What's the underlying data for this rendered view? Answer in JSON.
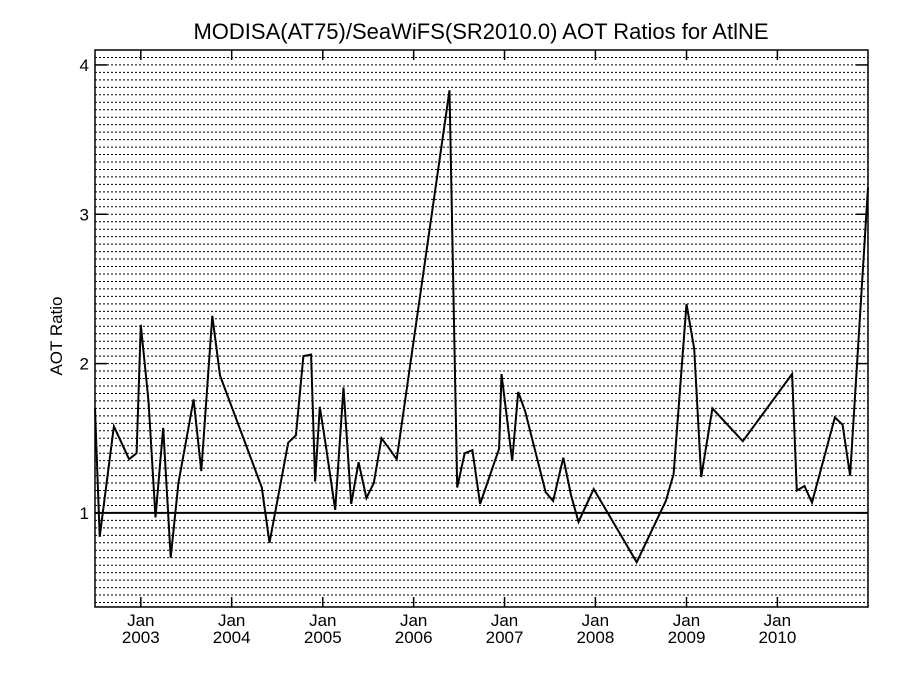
{
  "chart_data": {
    "type": "line",
    "title": "MODISA(AT75)/SeaWiFS(SR2010.0)  AOT Ratios for AtlNE",
    "ylabel": "AOT Ratio",
    "xlabel": "",
    "xlim": [
      "2002-07-01",
      "2010-12-31"
    ],
    "ylim": [
      0.37,
      4.1
    ],
    "y_ticks": [
      1,
      2,
      3,
      4
    ],
    "x_ticks": [
      {
        "month": "Jan",
        "year": "2003",
        "date": "2003-01-01"
      },
      {
        "month": "Jan",
        "year": "2004",
        "date": "2004-01-01"
      },
      {
        "month": "Jan",
        "year": "2005",
        "date": "2005-01-01"
      },
      {
        "month": "Jan",
        "year": "2006",
        "date": "2006-01-01"
      },
      {
        "month": "Jan",
        "year": "2007",
        "date": "2007-01-01"
      },
      {
        "month": "Jan",
        "year": "2008",
        "date": "2008-01-01"
      },
      {
        "month": "Jan",
        "year": "2009",
        "date": "2009-01-01"
      },
      {
        "month": "Jan",
        "year": "2010",
        "date": "2010-01-01"
      }
    ],
    "reference_line": 1,
    "grid": "dotted horizontal",
    "series": [
      {
        "color": "#000000",
        "points": [
          [
            "2002-07-01",
            1.7
          ],
          [
            "2002-07-20",
            0.84
          ],
          [
            "2002-09-15",
            1.58
          ],
          [
            "2002-11-15",
            1.36
          ],
          [
            "2002-12-15",
            1.4
          ],
          [
            "2003-01-01",
            2.26
          ],
          [
            "2003-02-01",
            1.75
          ],
          [
            "2003-03-01",
            0.97
          ],
          [
            "2003-04-01",
            1.57
          ],
          [
            "2003-05-01",
            0.7
          ],
          [
            "2003-06-01",
            1.2
          ],
          [
            "2003-08-01",
            1.76
          ],
          [
            "2003-09-01",
            1.28
          ],
          [
            "2003-10-15",
            2.32
          ],
          [
            "2003-11-15",
            1.92
          ],
          [
            "2004-05-01",
            1.17
          ],
          [
            "2004-06-01",
            0.8
          ],
          [
            "2004-08-15",
            1.47
          ],
          [
            "2004-09-15",
            1.52
          ],
          [
            "2004-10-15",
            2.05
          ],
          [
            "2004-11-15",
            2.06
          ],
          [
            "2004-12-01",
            1.21
          ],
          [
            "2004-12-20",
            1.71
          ],
          [
            "2005-01-15",
            1.43
          ],
          [
            "2005-02-20",
            1.02
          ],
          [
            "2005-03-25",
            1.84
          ],
          [
            "2005-04-25",
            1.06
          ],
          [
            "2005-05-25",
            1.34
          ],
          [
            "2005-06-25",
            1.1
          ],
          [
            "2005-07-25",
            1.2
          ],
          [
            "2005-08-25",
            1.5
          ],
          [
            "2005-09-25",
            1.43
          ],
          [
            "2005-10-25",
            1.36
          ],
          [
            "2006-05-25",
            3.83
          ],
          [
            "2006-06-25",
            1.17
          ],
          [
            "2006-07-25",
            1.4
          ],
          [
            "2006-08-25",
            1.42
          ],
          [
            "2006-09-25",
            1.06
          ],
          [
            "2006-12-10",
            1.43
          ],
          [
            "2006-12-20",
            1.93
          ],
          [
            "2007-02-01",
            1.35
          ],
          [
            "2007-02-25",
            1.81
          ],
          [
            "2007-03-25",
            1.68
          ],
          [
            "2007-06-15",
            1.14
          ],
          [
            "2007-07-15",
            1.08
          ],
          [
            "2007-08-25",
            1.37
          ],
          [
            "2007-09-25",
            1.12
          ],
          [
            "2007-10-25",
            0.94
          ],
          [
            "2007-12-25",
            1.16
          ],
          [
            "2008-06-15",
            0.67
          ],
          [
            "2008-10-10",
            1.08
          ],
          [
            "2008-11-10",
            1.26
          ],
          [
            "2009-01-01",
            2.4
          ],
          [
            "2009-02-01",
            2.1
          ],
          [
            "2009-03-01",
            1.24
          ],
          [
            "2009-04-15",
            1.7
          ],
          [
            "2009-08-15",
            1.48
          ],
          [
            "2010-03-01",
            1.93
          ],
          [
            "2010-03-20",
            1.15
          ],
          [
            "2010-04-20",
            1.18
          ],
          [
            "2010-05-20",
            1.07
          ],
          [
            "2010-08-20",
            1.64
          ],
          [
            "2010-09-20",
            1.59
          ],
          [
            "2010-10-20",
            1.25
          ],
          [
            "2010-12-31",
            3.18
          ]
        ]
      }
    ]
  }
}
